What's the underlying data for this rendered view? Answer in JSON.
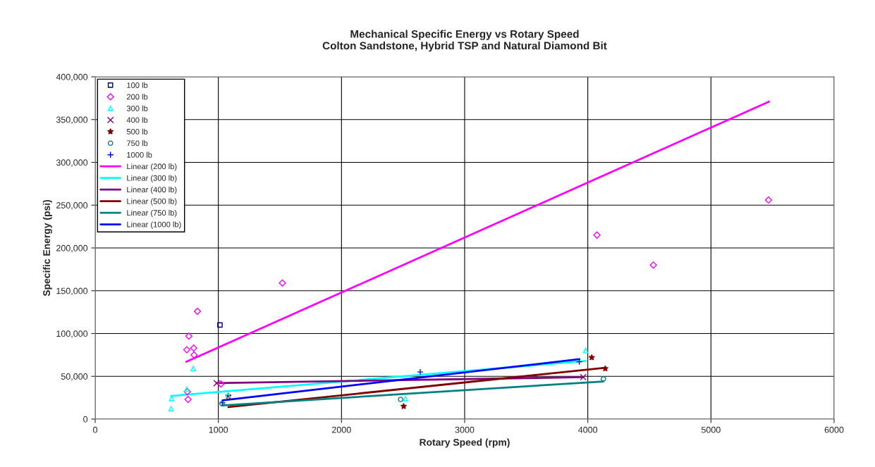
{
  "chart_data": {
    "type": "scatter",
    "title": "Mechanical Specific Energy vs Rotary Speed\nColton Sandstone, Hybrid TSP and Natural Diamond Bit",
    "xlabel": "Rotary Speed (rpm)",
    "ylabel": "Specific Energy (psi)",
    "xlim": [
      0,
      6000
    ],
    "xticks": [
      0,
      1000,
      2000,
      3000,
      4000,
      5000,
      6000
    ],
    "ylim": [
      0,
      400000
    ],
    "yticks": [
      {
        "value": 0,
        "label": "0"
      },
      {
        "value": 50000,
        "label": "50,000"
      },
      {
        "value": 100000,
        "label": "100,000"
      },
      {
        "value": 150000,
        "label": "150,000"
      },
      {
        "value": 200000,
        "label": "200,000"
      },
      {
        "value": 250000,
        "label": "250,000"
      },
      {
        "value": 300000,
        "label": "300,000"
      },
      {
        "value": 350000,
        "label": "350,000"
      },
      {
        "value": 400000,
        "label": "400,000"
      }
    ],
    "grid": true,
    "legend": "top left",
    "series": [
      {
        "name": "100 lb",
        "marker": "square",
        "color": "#000080",
        "x": [
          1013
        ],
        "values": [
          110000
        ]
      },
      {
        "name": "200 lb",
        "marker": "diamond",
        "color": "#ff00ff",
        "x": [
          1520,
          830,
          760,
          744,
          800,
          803,
          748,
          754,
          1021,
          4074,
          4532,
          5467
        ],
        "values": [
          159000,
          126000,
          97000,
          81000,
          83000,
          75000,
          32000,
          23000,
          41000,
          215000,
          180000,
          256000
        ]
      },
      {
        "name": "300 lb",
        "marker": "triangle",
        "color": "#00ffff",
        "x": [
          796,
          744,
          620,
          616,
          1078,
          2519,
          3982
        ],
        "values": [
          59000,
          35000,
          24000,
          12000,
          28000,
          24000,
          80000
        ]
      },
      {
        "name": "400 lb",
        "marker": "cross",
        "color": "#800080",
        "x": [
          986,
          3963
        ],
        "values": [
          42000,
          49000
        ]
      },
      {
        "name": "500 lb",
        "marker": "star",
        "color": "#800000",
        "x": [
          1082,
          2505,
          4032,
          4142
        ],
        "values": [
          27000,
          15000,
          72000,
          59000
        ]
      },
      {
        "name": "750 lb",
        "marker": "circle",
        "color": "#008080",
        "x": [
          1030,
          2480,
          4127
        ],
        "values": [
          18000,
          23000,
          47000
        ]
      },
      {
        "name": "1000 lb",
        "marker": "plus",
        "color": "#0000ff",
        "x": [
          1034,
          2639,
          3931
        ],
        "values": [
          19000,
          55000,
          67000
        ]
      },
      {
        "name": "Linear (200 lb)",
        "type": "line",
        "marker": "none",
        "color": "#ff00ff",
        "x": [
          740,
          5472
        ],
        "values": [
          67000,
          371000
        ]
      },
      {
        "name": "Linear (300 lb)",
        "type": "line",
        "marker": "none",
        "color": "#00ffff",
        "x": [
          616,
          3982
        ],
        "values": [
          27000,
          68000
        ]
      },
      {
        "name": "Linear (400 lb)",
        "type": "line",
        "marker": "none",
        "color": "#800080",
        "x": [
          986,
          3963
        ],
        "values": [
          42000,
          49000
        ]
      },
      {
        "name": "Linear (500 lb)",
        "type": "line",
        "marker": "none",
        "color": "#800000",
        "x": [
          1082,
          4142
        ],
        "values": [
          14000,
          60000
        ]
      },
      {
        "name": "Linear (750 lb)",
        "type": "line",
        "marker": "none",
        "color": "#008080",
        "x": [
          1030,
          4127
        ],
        "values": [
          16000,
          44000
        ]
      },
      {
        "name": "Linear (1000 lb)",
        "type": "line",
        "marker": "none",
        "color": "#0000ff",
        "x": [
          1034,
          3931
        ],
        "values": [
          22000,
          70000
        ]
      }
    ]
  }
}
